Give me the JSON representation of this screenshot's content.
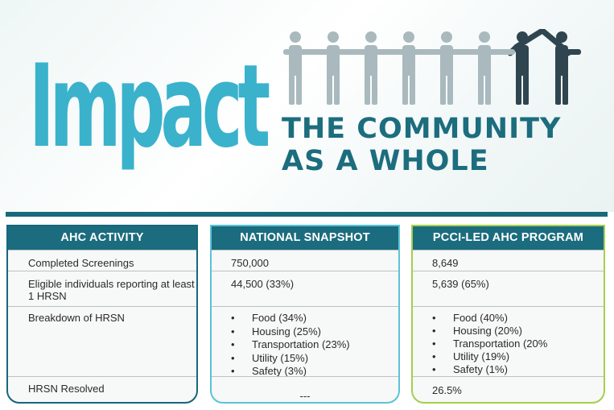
{
  "hero": {
    "title": "Impact",
    "subtitle_line1": "THE COMMUNITY",
    "subtitle_line2": "AS A WHOLE"
  },
  "colors": {
    "teal_dark": "#1b6c7e",
    "teal_light": "#3ab2cc",
    "card2_border": "#5bc3d6",
    "card3_border": "#a5cf4c",
    "people_light": "#a9b9bd",
    "people_dark": "#2f4550"
  },
  "icons": [
    "people-holding-hands-icon",
    "house-roof-arms-icon"
  ],
  "columns": [
    {
      "header": "AHC ACTIVITY",
      "rows": [
        "Completed Screenings",
        "Eligible individuals reporting at least 1 HRSN",
        "Breakdown of HRSN",
        "HRSN Resolved"
      ]
    },
    {
      "header": "NATIONAL SNAPSHOT",
      "screenings": "750,000",
      "eligible": "44,500 (33%)",
      "breakdown": [
        "Food (34%)",
        "Housing (25%)",
        "Transportation (23%)",
        "Utility (15%)",
        "Safety (3%)"
      ],
      "resolved": "---"
    },
    {
      "header": "PCCI-LED AHC PROGRAM",
      "screenings": "8,649",
      "eligible": "5,639 (65%)",
      "breakdown": [
        "Food (40%)",
        "Housing (20%)",
        "Transportation (20%",
        "Utility (19%)",
        "Safety (1%)"
      ],
      "resolved": "26.5%"
    }
  ]
}
